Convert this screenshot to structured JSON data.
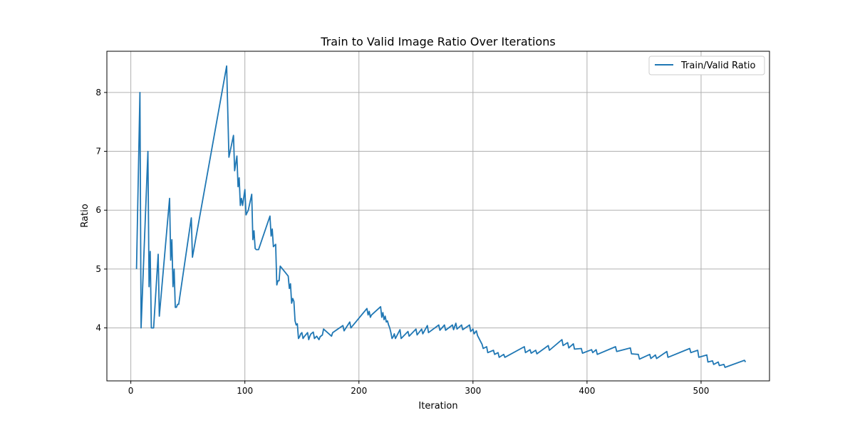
{
  "chart_data": {
    "type": "line",
    "title": "Train to Valid Image Ratio Over Iterations",
    "xlabel": "Iteration",
    "ylabel": "Ratio",
    "xlim": [
      -21,
      560
    ],
    "ylim": [
      3.1,
      8.7
    ],
    "xticks": [
      0,
      100,
      200,
      300,
      400,
      500
    ],
    "yticks": [
      4,
      5,
      6,
      7,
      8
    ],
    "grid": true,
    "legend_position": "top-right",
    "colors": {
      "series": "#1f77b4",
      "grid": "#b0b0b0"
    },
    "series": [
      {
        "name": "Train/Valid Ratio",
        "x": [
          5,
          8,
          9,
          15,
          16,
          17,
          18,
          19,
          20,
          24,
          25,
          34,
          35,
          36,
          37,
          38,
          39,
          40,
          41,
          42,
          53,
          54,
          84,
          86,
          90,
          91,
          93,
          94,
          95,
          96,
          97,
          98,
          100,
          101,
          103,
          106,
          107,
          108,
          109,
          110,
          111,
          112,
          122,
          123,
          124,
          125,
          127,
          128,
          129,
          130,
          131,
          138,
          139,
          140,
          141,
          142,
          143,
          144,
          145,
          146,
          147,
          148,
          149,
          150,
          151,
          152,
          155,
          156,
          157,
          158,
          160,
          161,
          163,
          165,
          166,
          168,
          169,
          176,
          177,
          186,
          187,
          192,
          193,
          207,
          208,
          209,
          210,
          211,
          219,
          220,
          221,
          222,
          223,
          224,
          225,
          226,
          227,
          228,
          229,
          230,
          231,
          232,
          236,
          237,
          243,
          244,
          250,
          251,
          255,
          256,
          260,
          261,
          270,
          271,
          275,
          276,
          282,
          283,
          285,
          286,
          290,
          291,
          297,
          298,
          300,
          301,
          303,
          304,
          308,
          309,
          312,
          313,
          318,
          319,
          322,
          323,
          327,
          328,
          345,
          346,
          350,
          351,
          355,
          356,
          366,
          367,
          378,
          379,
          383,
          384,
          388,
          389,
          395,
          396,
          404,
          405,
          408,
          409,
          425,
          426,
          438,
          439,
          445,
          446,
          455,
          456,
          460,
          461,
          470,
          471,
          490,
          491,
          497,
          498,
          505,
          506,
          510,
          511,
          515,
          516,
          520,
          521,
          538,
          539
        ],
        "y": [
          5.0,
          8.0,
          4.0,
          7.0,
          4.7,
          5.3,
          4.0,
          4.0,
          4.0,
          5.25,
          4.2,
          6.2,
          5.15,
          5.5,
          4.7,
          5.0,
          4.35,
          4.35,
          4.4,
          4.4,
          5.87,
          5.2,
          8.45,
          6.9,
          7.27,
          6.67,
          6.92,
          6.4,
          6.55,
          6.08,
          6.2,
          6.08,
          6.35,
          5.92,
          6.0,
          6.27,
          5.5,
          5.65,
          5.35,
          5.33,
          5.33,
          5.33,
          5.9,
          5.56,
          5.68,
          5.38,
          5.42,
          4.73,
          4.8,
          4.8,
          5.05,
          4.88,
          4.67,
          4.75,
          4.42,
          4.5,
          4.45,
          4.12,
          4.05,
          4.07,
          3.82,
          3.85,
          3.9,
          3.92,
          3.82,
          3.85,
          3.92,
          3.8,
          3.86,
          3.9,
          3.93,
          3.82,
          3.86,
          3.8,
          3.85,
          3.88,
          3.98,
          3.86,
          3.92,
          4.04,
          3.95,
          4.1,
          4.0,
          4.33,
          4.22,
          4.28,
          4.18,
          4.22,
          4.36,
          4.18,
          4.26,
          4.14,
          4.2,
          4.1,
          4.12,
          4.05,
          4.0,
          3.92,
          3.82,
          3.85,
          3.9,
          3.82,
          3.97,
          3.82,
          3.94,
          3.86,
          3.98,
          3.88,
          3.98,
          3.9,
          4.04,
          3.92,
          4.05,
          3.96,
          4.05,
          3.96,
          4.05,
          3.97,
          4.08,
          3.98,
          4.05,
          3.97,
          4.05,
          3.94,
          3.98,
          3.9,
          3.95,
          3.87,
          3.72,
          3.65,
          3.68,
          3.58,
          3.62,
          3.55,
          3.58,
          3.5,
          3.55,
          3.5,
          3.68,
          3.58,
          3.63,
          3.57,
          3.62,
          3.56,
          3.7,
          3.62,
          3.8,
          3.7,
          3.75,
          3.66,
          3.73,
          3.64,
          3.65,
          3.57,
          3.63,
          3.58,
          3.63,
          3.55,
          3.68,
          3.6,
          3.66,
          3.56,
          3.55,
          3.47,
          3.55,
          3.48,
          3.54,
          3.48,
          3.6,
          3.5,
          3.65,
          3.58,
          3.62,
          3.5,
          3.54,
          3.42,
          3.44,
          3.38,
          3.42,
          3.36,
          3.38,
          3.33,
          3.45,
          3.42
        ]
      }
    ]
  }
}
